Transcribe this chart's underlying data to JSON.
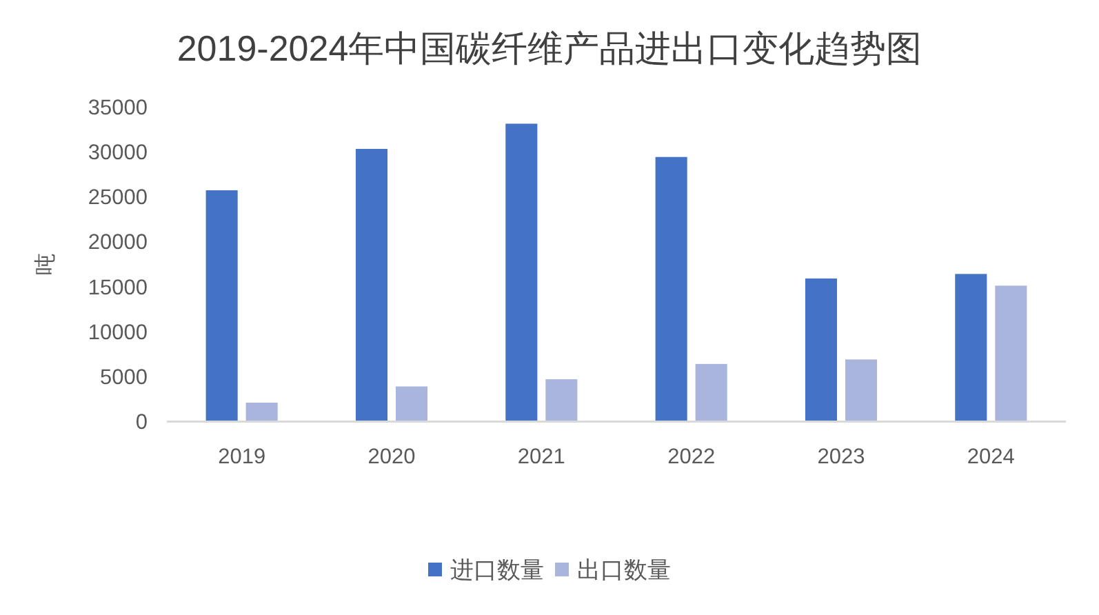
{
  "chart_data": {
    "type": "bar",
    "title": "2019-2024年中国碳纤维产品进出口变化趋势图",
    "ylabel": "吨",
    "categories": [
      "2019",
      "2020",
      "2021",
      "2022",
      "2023",
      "2024"
    ],
    "series": [
      {
        "name": "进口数量",
        "color": "#4472c4",
        "values": [
          25700,
          30300,
          33100,
          29400,
          15900,
          16400
        ]
      },
      {
        "name": "出口数量",
        "color": "#a9b5dd",
        "values": [
          2100,
          3900,
          4700,
          6400,
          6900,
          15100
        ]
      }
    ],
    "ylim": [
      0,
      35000
    ],
    "yticks": [
      0,
      5000,
      10000,
      15000,
      20000,
      25000,
      30000,
      35000
    ],
    "legend": "bottom"
  }
}
